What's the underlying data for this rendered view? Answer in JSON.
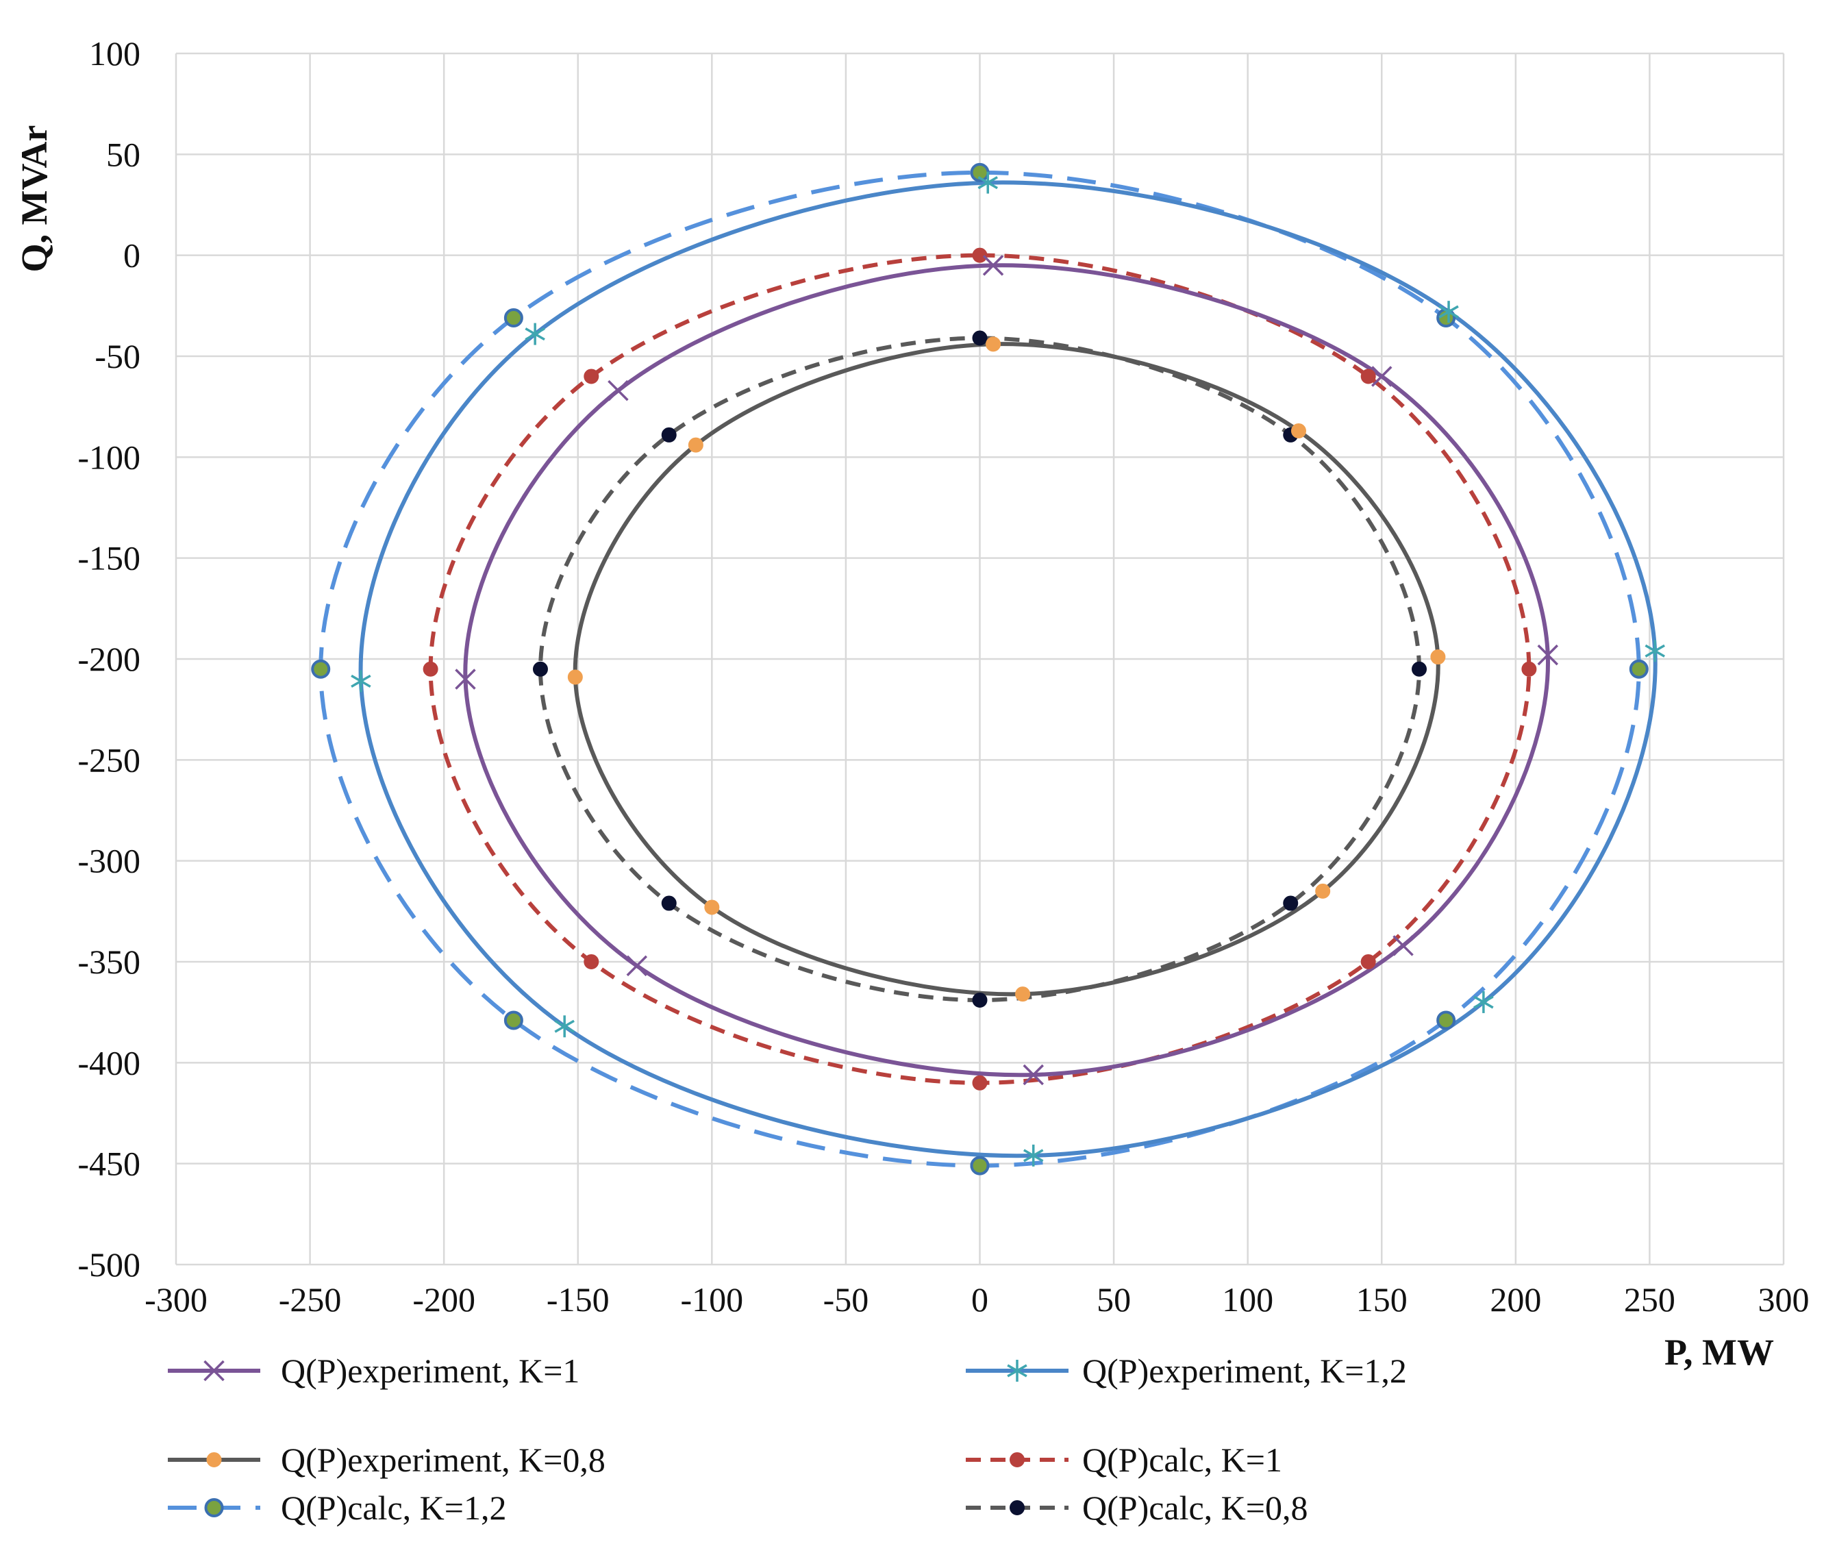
{
  "chart_data": {
    "type": "scatter",
    "title": "",
    "xlabel": "P, MW",
    "ylabel": "Q, MVAr",
    "xlim": [
      -300,
      300
    ],
    "ylim": [
      -500,
      100
    ],
    "x_ticks": [
      -300,
      -250,
      -200,
      -150,
      -100,
      -50,
      0,
      50,
      100,
      150,
      200,
      250,
      300
    ],
    "y_ticks": [
      100,
      50,
      0,
      -50,
      -100,
      -150,
      -200,
      -250,
      -300,
      -350,
      -400,
      -450,
      -500
    ],
    "grid": true,
    "legend_position": "bottom",
    "series": [
      {
        "name": "Q(P)experiment, K=1",
        "color": "#7a5496",
        "dash": "solid",
        "marker": "x",
        "marker_fill": "#7a5496",
        "marker_edge": "#7a5496",
        "points": [
          [
            5,
            -5
          ],
          [
            150,
            -60
          ],
          [
            212,
            -198
          ],
          [
            158,
            -342
          ],
          [
            20,
            -406
          ],
          [
            -128,
            -352
          ],
          [
            -192,
            -210
          ],
          [
            -135,
            -67
          ]
        ]
      },
      {
        "name": "Q(P)experiment, K=1,2",
        "color": "#4a86c8",
        "dash": "solid",
        "marker": "asterisk",
        "marker_fill": "#3fa6b0",
        "marker_edge": "#3fa6b0",
        "points": [
          [
            3,
            36
          ],
          [
            175,
            -28
          ],
          [
            252,
            -196
          ],
          [
            188,
            -370
          ],
          [
            20,
            -446
          ],
          [
            -155,
            -382
          ],
          [
            -231,
            -211
          ],
          [
            -166,
            -39
          ]
        ]
      },
      {
        "name": "Q(P)experiment, K=0,8",
        "color": "#595959",
        "dash": "solid",
        "marker": "circle",
        "marker_fill": "#f0a050",
        "marker_edge": "#f0a050",
        "points": [
          [
            5,
            -44
          ],
          [
            119,
            -87
          ],
          [
            171,
            -199
          ],
          [
            128,
            -315
          ],
          [
            16,
            -366
          ],
          [
            -100,
            -323
          ],
          [
            -151,
            -209
          ],
          [
            -106,
            -94
          ]
        ]
      },
      {
        "name": "Q(P)calc, K=1",
        "color": "#b8403c",
        "dash": "dash",
        "marker": "circle",
        "marker_fill": "#b8403c",
        "marker_edge": "#b8403c",
        "points": [
          [
            0,
            0
          ],
          [
            145,
            -60
          ],
          [
            205,
            -205
          ],
          [
            145,
            -350
          ],
          [
            0,
            -410
          ],
          [
            -145,
            -350
          ],
          [
            -205,
            -205
          ],
          [
            -145,
            -60
          ]
        ]
      },
      {
        "name": "Q(P)calc, K=1,2",
        "color": "#5591dc",
        "dash": "longdash",
        "marker": "circle",
        "marker_fill": "#7aa240",
        "marker_edge": "#3b6fb0",
        "points": [
          [
            0,
            41
          ],
          [
            174,
            -31
          ],
          [
            246,
            -205
          ],
          [
            174,
            -379
          ],
          [
            0,
            -451
          ],
          [
            -174,
            -379
          ],
          [
            -246,
            -205
          ],
          [
            -174,
            -31
          ]
        ]
      },
      {
        "name": "Q(P)calc, K=0,8",
        "color": "#595959",
        "dash": "dash",
        "marker": "circle",
        "marker_fill": "#0a1030",
        "marker_edge": "#0a1030",
        "points": [
          [
            0,
            -41
          ],
          [
            116,
            -89
          ],
          [
            164,
            -205
          ],
          [
            116,
            -321
          ],
          [
            0,
            -369
          ],
          [
            -116,
            -321
          ],
          [
            -164,
            -205
          ],
          [
            -116,
            -89
          ]
        ]
      }
    ]
  }
}
